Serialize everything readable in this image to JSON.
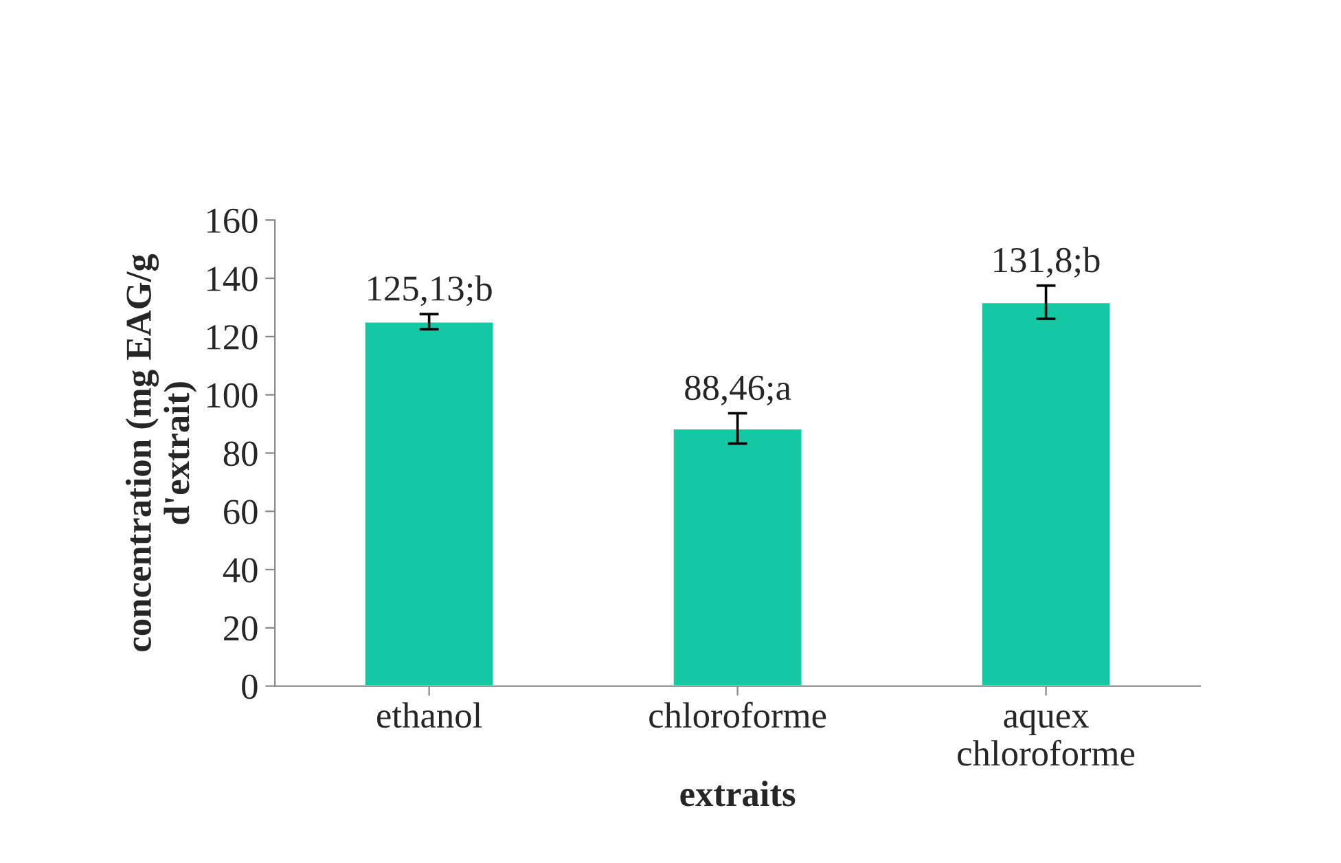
{
  "chart_data": {
    "type": "bar",
    "xlabel": "extraits",
    "ylabel": "concentration (mg EAG/g\nd'extrait)",
    "categories": [
      "ethanol",
      "chloroforme",
      "aquex\nchloroforme"
    ],
    "values": [
      125.13,
      88.46,
      131.8
    ],
    "errors": [
      2.6,
      5.2,
      5.7
    ],
    "value_labels": [
      "125,13;b",
      "88,46;a",
      "131,8;b"
    ],
    "color": "#14c8a4",
    "ylim": [
      0,
      160
    ],
    "yticks": [
      0,
      20,
      40,
      60,
      80,
      100,
      120,
      140,
      160
    ],
    "grid": false
  }
}
